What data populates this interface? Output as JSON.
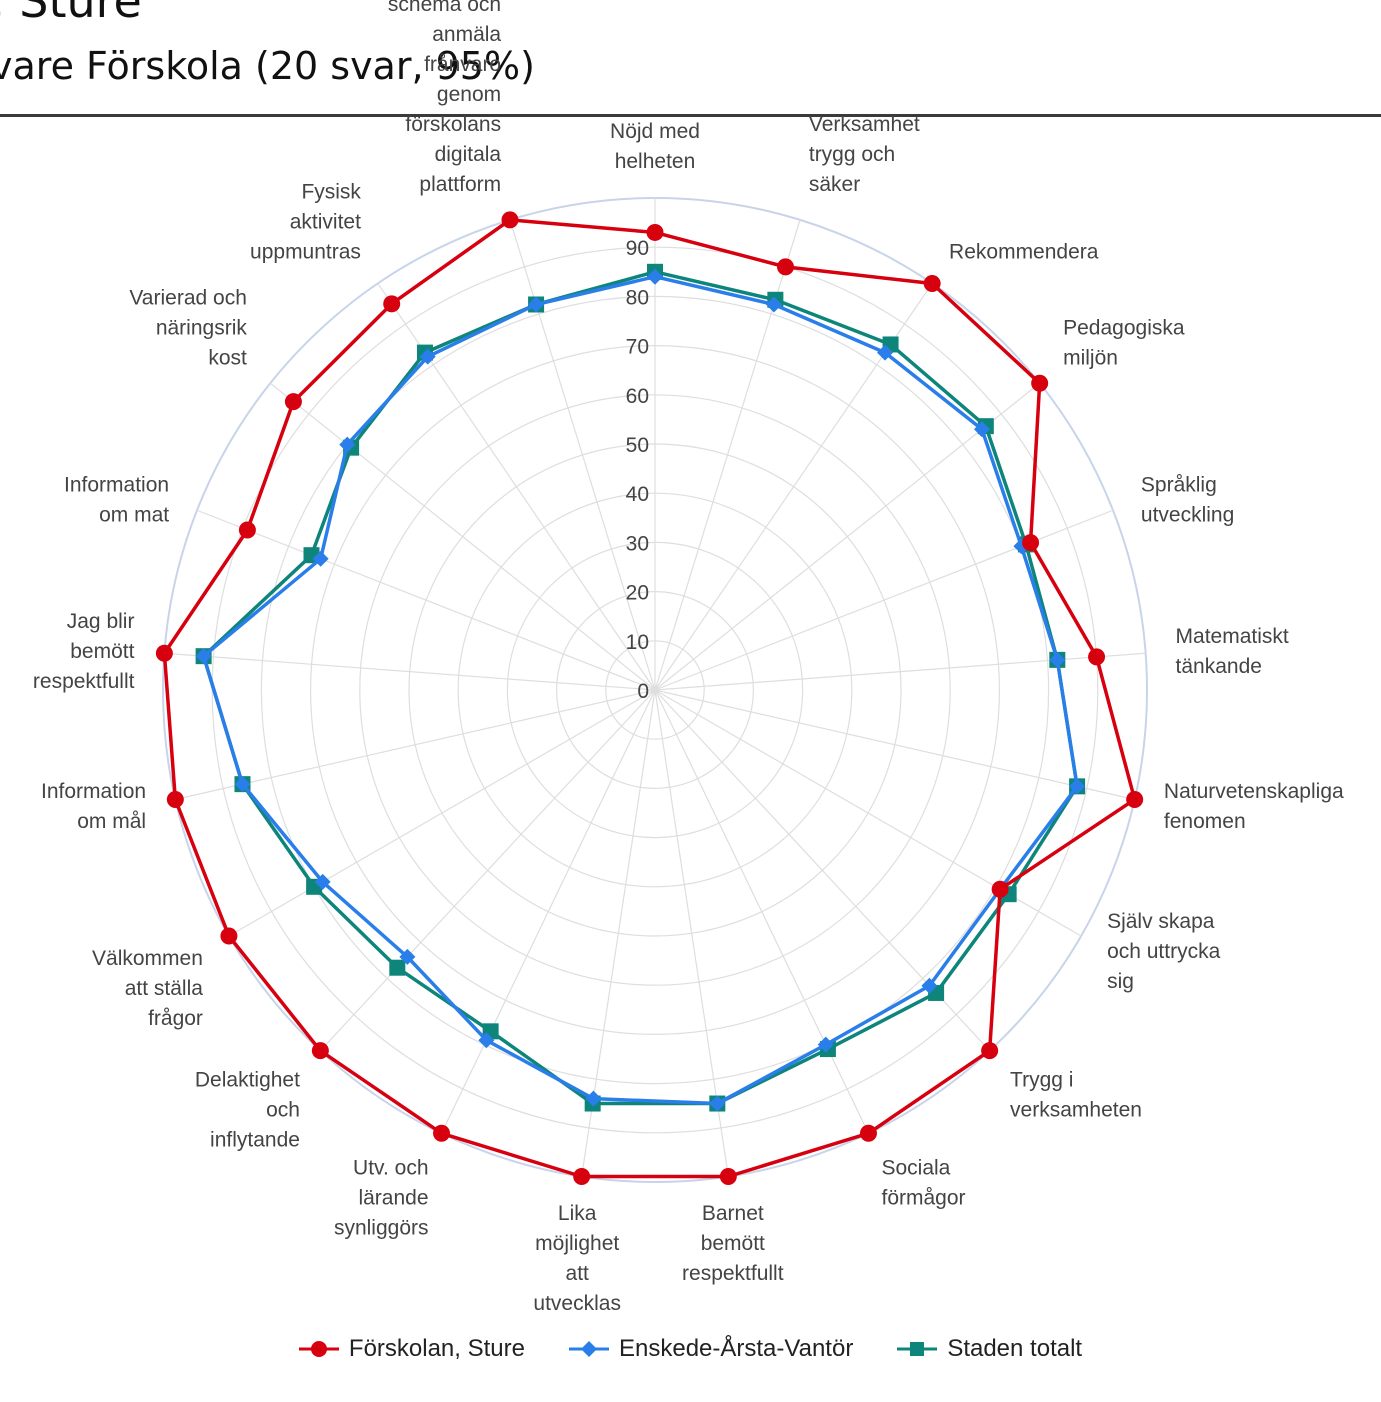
{
  "header": {
    "title": ", Sture",
    "subtitle": "vare Förskola  (20 svar, 95%)"
  },
  "colors": {
    "series": [
      "#d7000f",
      "#2a7ee9",
      "#0e857a"
    ],
    "grid": "#dedede",
    "outer_ring": "#c8d4ea"
  },
  "legend": {
    "items": [
      {
        "label": "Förskolan, Sture",
        "marker": "circle"
      },
      {
        "label": "Enskede-Årsta-Vantör",
        "marker": "diamond"
      },
      {
        "label": "Staden totalt",
        "marker": "square"
      }
    ]
  },
  "chart_data": {
    "type": "radar",
    "title": "",
    "rlim": [
      0,
      90
    ],
    "rticks": [
      0,
      10,
      20,
      30,
      40,
      50,
      60,
      70,
      80,
      90
    ],
    "grid": true,
    "legend_position": "bottom",
    "categories": [
      "Nöjd med helheten",
      "Verksamhet trygg och säker",
      "Rekommendera",
      "Pedagogiska miljön",
      "Språklig utveckling",
      "Matematiskt tänkande",
      "Naturvetenskapliga fenomen",
      "Själv skapa och uttrycka sig",
      "Trygg i verksamheten",
      "Sociala förmågor",
      "Barnet bemött respektfullt",
      "Lika möjlighet att utvecklas",
      "Utv. och lärande synliggörs",
      "Delaktighet och inflytande",
      "Välkommen att ställa frågor",
      "Information om mål",
      "Jag blir bemött respektfullt",
      "Information om mat",
      "Varierad och näringsrik kost",
      "Fysisk aktivitet uppmuntras",
      "Jag känner till att jag kan registrera mitt barns schema och anmäla frånvaro genom förskolans digitala plattform"
    ],
    "series": [
      {
        "name": "Förskolan, Sture",
        "marker": "circle",
        "values": [
          93,
          90,
          100,
          100,
          82,
          90,
          100,
          81,
          100,
          100,
          100,
          100,
          100,
          100,
          100,
          100,
          100,
          89,
          94,
          95,
          100
        ]
      },
      {
        "name": "Enskede-Årsta-Vantör",
        "marker": "diamond",
        "values": [
          84,
          82,
          83,
          85,
          80,
          82,
          88,
          81,
          82,
          80,
          85,
          84,
          79,
          74,
          78,
          86,
          92,
          73,
          80,
          82,
          82
        ]
      },
      {
        "name": "Staden totalt",
        "marker": "square",
        "values": [
          85,
          83,
          85,
          86,
          81,
          82,
          88,
          83,
          84,
          81,
          85,
          85,
          77,
          77,
          80,
          86,
          92,
          75,
          79,
          83,
          82
        ]
      }
    ]
  }
}
